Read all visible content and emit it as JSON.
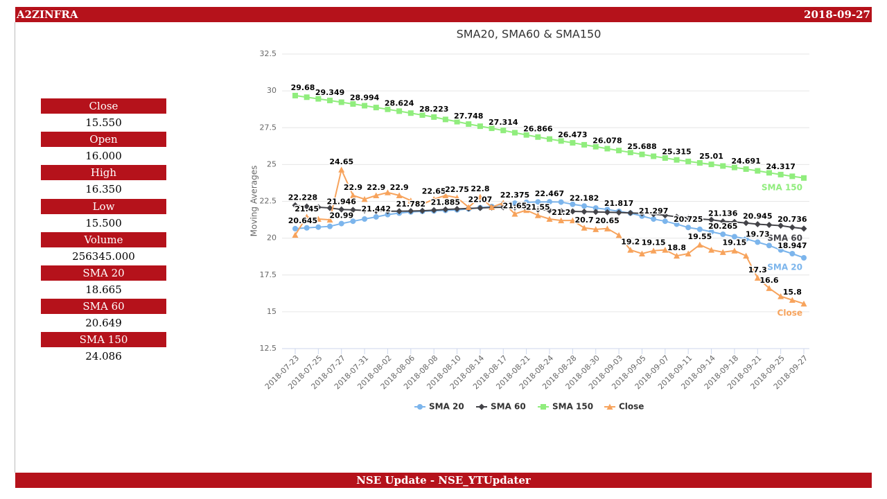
{
  "header": {
    "title": "A2ZINFRA",
    "date": "2018-09-27"
  },
  "panel": [
    {
      "label": "Close",
      "value": "15.550"
    },
    {
      "label": "Open",
      "value": "16.000"
    },
    {
      "label": "High",
      "value": "16.350"
    },
    {
      "label": "Low",
      "value": "15.500"
    },
    {
      "label": "Volume",
      "value": "256345.000"
    },
    {
      "label": "SMA 20",
      "value": "18.665"
    },
    {
      "label": "SMA 60",
      "value": "20.649"
    },
    {
      "label": "SMA 150",
      "value": "24.086"
    }
  ],
  "footer": "NSE Update - NSE_YTUpdater",
  "chart_data": {
    "type": "line",
    "title": "SMA20, SMA60 & SMA150",
    "y_label": "Moving Averages",
    "ylim": [
      12.5,
      32.5
    ],
    "yticks": [
      12.5,
      15,
      17.5,
      20,
      22.5,
      25,
      27.5,
      30,
      32.5
    ],
    "grid": true,
    "legend": "bottom",
    "categories": [
      "2018-07-23",
      null,
      "2018-07-25",
      null,
      "2018-07-27",
      null,
      "2018-07-31",
      null,
      "2018-08-02",
      null,
      "2018-08-06",
      null,
      "2018-08-08",
      null,
      "2018-08-10",
      null,
      "2018-08-14",
      null,
      "2018-08-17",
      null,
      "2018-08-21",
      null,
      "2018-08-24",
      null,
      "2018-08-28",
      null,
      "2018-08-30",
      null,
      "2018-09-03",
      null,
      "2018-09-05",
      null,
      "2018-09-07",
      null,
      "2018-09-11",
      null,
      "2018-09-14",
      null,
      "2018-09-18",
      null,
      "2018-09-21",
      null,
      "2018-09-25",
      null,
      "2018-09-27"
    ],
    "series": [
      {
        "name": "SMA 20",
        "color": "#7cb5ec",
        "marker": "circle",
        "values": [
          20.645,
          20.7,
          20.75,
          20.8,
          20.99,
          21.15,
          21.3,
          21.442,
          21.6,
          21.7,
          21.782,
          21.82,
          21.85,
          21.885,
          21.92,
          21.98,
          22.07,
          22.15,
          22.3,
          22.375,
          22.43,
          22.46,
          22.467,
          22.45,
          22.3,
          22.182,
          22.05,
          21.95,
          21.817,
          21.7,
          21.5,
          21.297,
          21.15,
          20.95,
          20.725,
          20.6,
          20.43,
          20.265,
          20.1,
          19.95,
          19.73,
          19.5,
          19.2,
          18.947,
          18.665
        ],
        "value_labels": [
          "20.645",
          null,
          null,
          null,
          "20.99",
          null,
          null,
          "21.442",
          null,
          null,
          "21.782",
          null,
          null,
          "21.885",
          null,
          null,
          "22.07",
          null,
          null,
          "22.375",
          null,
          null,
          "22.467",
          null,
          null,
          "22.182",
          null,
          null,
          "21.817",
          null,
          null,
          "21.297",
          null,
          null,
          "20.725",
          null,
          null,
          "20.265",
          null,
          null,
          "19.73",
          null,
          null,
          "18.947",
          null
        ]
      },
      {
        "name": "SMA 60",
        "color": "#434348",
        "marker": "diamond",
        "values": [
          22.228,
          22.15,
          22.1,
          22.05,
          21.946,
          21.92,
          21.88,
          21.85,
          21.83,
          21.83,
          21.84,
          21.86,
          21.9,
          21.95,
          21.98,
          22.02,
          22.05,
          22.08,
          22.1,
          22.08,
          22.0,
          21.95,
          21.88,
          21.85,
          21.82,
          21.8,
          21.78,
          21.76,
          21.74,
          21.71,
          21.68,
          21.63,
          21.55,
          21.45,
          21.38,
          21.3,
          21.25,
          21.136,
          21.1,
          21.03,
          20.945,
          20.9,
          20.85,
          20.736,
          20.649
        ],
        "value_labels": [
          "22.228",
          null,
          null,
          null,
          "21.946",
          null,
          null,
          null,
          null,
          null,
          null,
          null,
          null,
          null,
          null,
          null,
          null,
          null,
          null,
          null,
          null,
          null,
          null,
          null,
          null,
          null,
          null,
          null,
          null,
          null,
          null,
          null,
          null,
          null,
          null,
          null,
          null,
          "21.136",
          null,
          null,
          "20.945",
          null,
          null,
          "20.736",
          null
        ]
      },
      {
        "name": "SMA 150",
        "color": "#90ed7d",
        "marker": "square",
        "values": [
          29.68,
          29.57,
          29.46,
          29.349,
          29.23,
          29.11,
          28.994,
          28.87,
          28.75,
          28.624,
          28.49,
          28.36,
          28.223,
          28.06,
          27.91,
          27.748,
          27.6,
          27.46,
          27.314,
          27.16,
          27.01,
          26.866,
          26.73,
          26.6,
          26.473,
          26.34,
          26.21,
          26.078,
          25.95,
          25.82,
          25.688,
          25.56,
          25.44,
          25.315,
          25.21,
          25.11,
          25.01,
          24.9,
          24.8,
          24.691,
          24.57,
          24.44,
          24.317,
          24.2,
          24.086
        ],
        "value_labels": [
          "29.68",
          null,
          null,
          "29.349",
          null,
          null,
          "28.994",
          null,
          null,
          "28.624",
          null,
          null,
          "28.223",
          null,
          null,
          "27.748",
          null,
          null,
          "27.314",
          null,
          null,
          "26.866",
          null,
          null,
          "26.473",
          null,
          null,
          "26.078",
          null,
          null,
          "25.688",
          null,
          null,
          "25.315",
          null,
          null,
          "25.01",
          null,
          null,
          "24.691",
          null,
          null,
          "24.317",
          null,
          null
        ]
      },
      {
        "name": "Close",
        "color": "#f7a35c",
        "marker": "triangle",
        "values": [
          20.22,
          21.45,
          21.3,
          21.25,
          24.65,
          22.9,
          22.65,
          22.9,
          23.1,
          22.9,
          22.55,
          22.3,
          22.65,
          22.9,
          22.75,
          22.1,
          22.8,
          22.1,
          22.4,
          21.65,
          21.9,
          21.55,
          21.3,
          21.2,
          21.2,
          20.7,
          20.6,
          20.65,
          20.2,
          19.2,
          18.95,
          19.15,
          19.2,
          18.8,
          18.95,
          19.55,
          19.2,
          19.05,
          19.15,
          18.8,
          17.3,
          16.6,
          16.05,
          15.8,
          15.55
        ],
        "value_labels": [
          null,
          "21.45",
          null,
          null,
          "24.65",
          "22.9",
          null,
          "22.9",
          null,
          "22.9",
          null,
          null,
          "22.65",
          null,
          "22.75",
          null,
          "22.8",
          null,
          null,
          "21.65",
          null,
          "21.55",
          null,
          "21.2",
          null,
          "20.7",
          null,
          "20.65",
          null,
          "19.2",
          null,
          "19.15",
          null,
          "18.8",
          null,
          "19.55",
          null,
          null,
          "19.15",
          null,
          "17.3",
          "16.6",
          null,
          "15.8",
          null
        ]
      }
    ]
  }
}
